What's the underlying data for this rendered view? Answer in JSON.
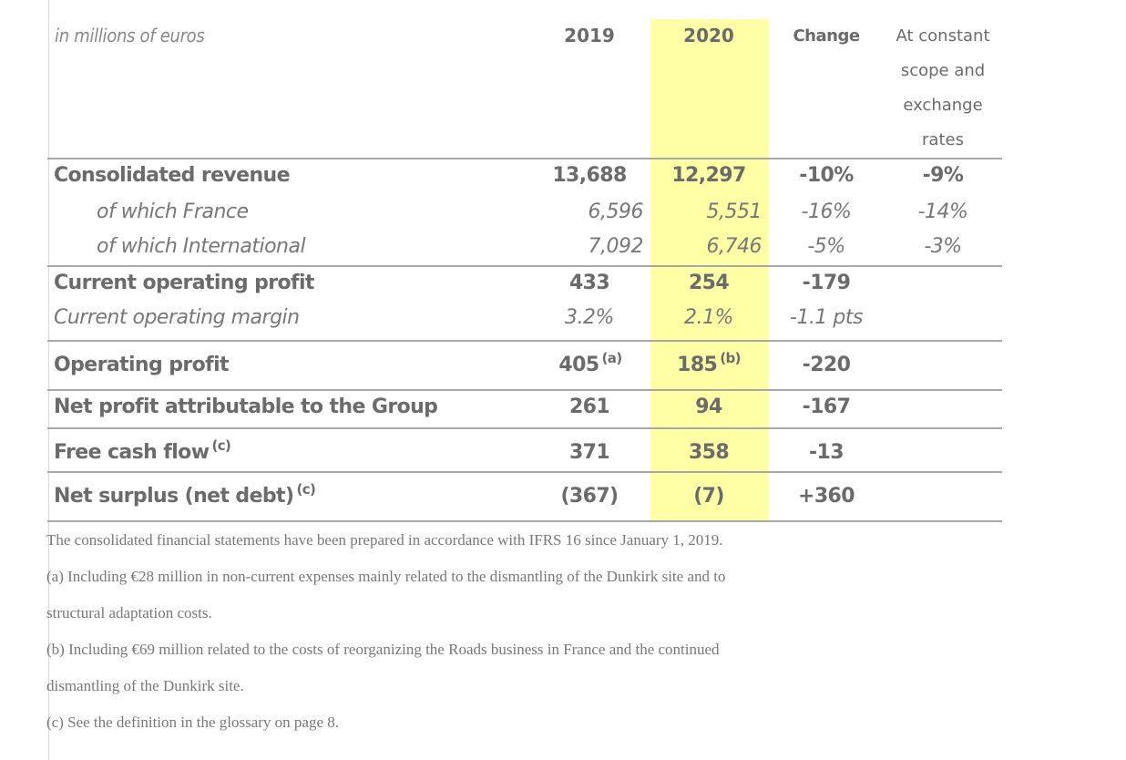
{
  "header": {
    "unit": "in millions of euros",
    "year_2019": "2019",
    "year_2020": "2020",
    "change": "Change",
    "constant_line1": "At constant",
    "constant_line2": "scope and",
    "constant_line3": "exchange",
    "constant_line4": "rates"
  },
  "rows": [
    {
      "label": "Consolidated revenue",
      "v2019": "13,688",
      "v2020": "12,297",
      "change": "-10%",
      "constant": "-9%"
    },
    {
      "label": "of which France",
      "v2019": "6,596",
      "v2020": "5,551",
      "change": "-16%",
      "constant": "-14%"
    },
    {
      "label": "of which International",
      "v2019": "7,092",
      "v2020": "6,746",
      "change": "-5%",
      "constant": "-3%"
    },
    {
      "label": "Current operating profit",
      "v2019": "433",
      "v2020": "254",
      "change": "-179",
      "constant": ""
    },
    {
      "label": "Current operating margin",
      "v2019": "3.2%",
      "v2020": "2.1%",
      "change": "-1.1 pts",
      "constant": ""
    },
    {
      "label": "Operating profit",
      "v2019": "405",
      "v2019_note": "(a)",
      "v2020": "185",
      "v2020_note": "(b)",
      "change": "-220",
      "constant": ""
    },
    {
      "label": "Net profit attributable to the Group",
      "v2019": "261",
      "v2020": "94",
      "change": "-167",
      "constant": ""
    },
    {
      "label": "Free cash flow",
      "label_note": "(c)",
      "v2019": "371",
      "v2020": "358",
      "change": "-13",
      "constant": ""
    },
    {
      "label": "Net surplus (net debt)",
      "label_note": "(c)",
      "v2019": "(367)",
      "v2020": "(7)",
      "change": "+360",
      "constant": ""
    }
  ],
  "notes": {
    "ifrs": "The consolidated financial statements have been prepared in accordance with IFRS 16 since January 1, 2019.",
    "a_line1": "(a) Including €28 million in non-current expenses mainly related to the dismantling of the Dunkirk site and to",
    "a_line2": "structural adaptation costs.",
    "b_line1": "(b) Including €69 million related to the costs of reorganizing the Roads business in France and the continued",
    "b_line2": "dismantling of the Dunkirk site.",
    "c": "(c) See the definition in the glossary on page 8."
  },
  "colors": {
    "highlight_2020": "#ffffa6",
    "rule": "#a8a8a8",
    "text": "#6e6e6e"
  }
}
